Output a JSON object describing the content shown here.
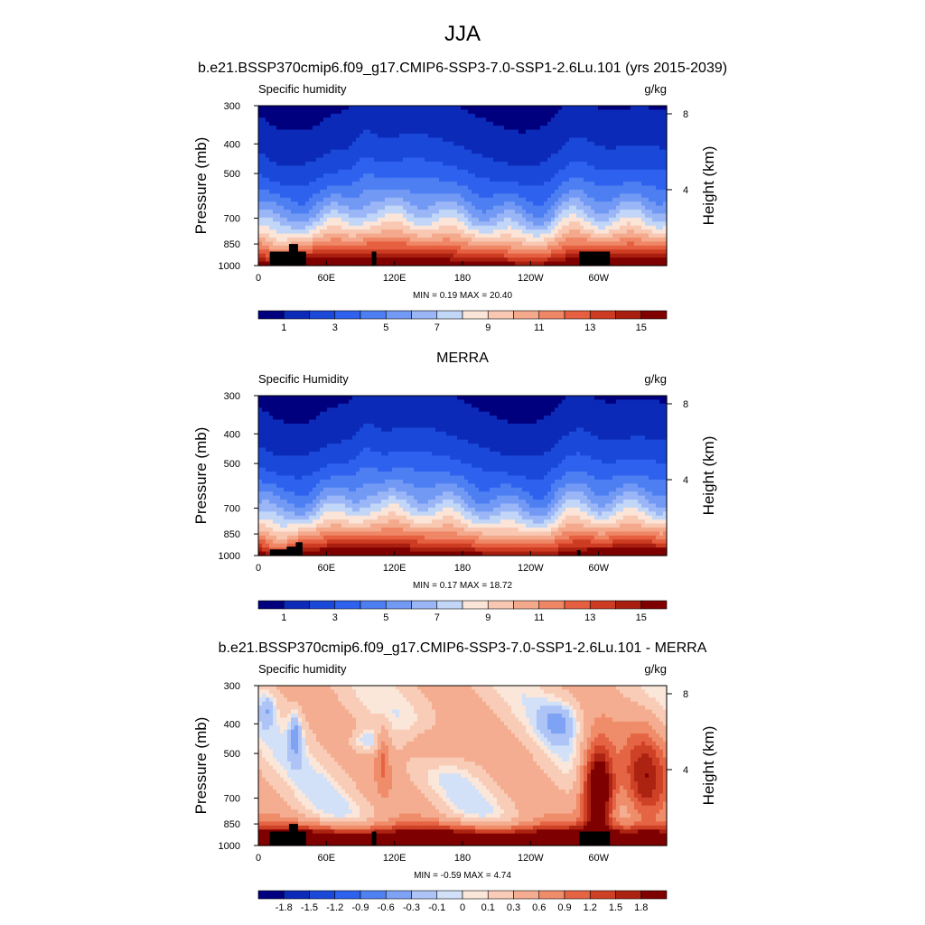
{
  "figure": {
    "title": "JJA"
  },
  "palettes": {
    "absolute": [
      "#00007f",
      "#0c2ab8",
      "#1a48d8",
      "#2e62ee",
      "#4d7ff2",
      "#7299f4",
      "#9ab6f6",
      "#c2d6f8",
      "#fbe4d8",
      "#f8c8b2",
      "#f4a98c",
      "#ef8766",
      "#e55f40",
      "#cd3c22",
      "#a81f10",
      "#7f0000"
    ],
    "difference": [
      "#00007f",
      "#0c2ab8",
      "#1a48d8",
      "#2e62ee",
      "#5081f2",
      "#7ea2f4",
      "#aec4f6",
      "#d2e1f8",
      "#fbe6da",
      "#f8ccb6",
      "#f4ad90",
      "#ef8c6a",
      "#e56444",
      "#cf4126",
      "#ad2312",
      "#7f0000"
    ],
    "terrain": "#000000"
  },
  "chart_data": [
    {
      "type": "heatmap",
      "title": "b.e21.BSSP370cmip6.f09_g17.CMIP6-SSP3-7.0-SSP1-2.6Lu.101 (yrs 2015-2039)",
      "left_label": "Specific humidity",
      "units": "g/kg",
      "ylabel": "Pressure (mb)",
      "ylabel_right": "Height (km)",
      "xticks": [
        "0",
        "60E",
        "120E",
        "180",
        "120W",
        "60W"
      ],
      "yticks": [
        "300",
        "400",
        "500",
        "700",
        "850",
        "1000"
      ],
      "yticks_right": [
        "8",
        "4"
      ],
      "minmax": "MIN =  0.19  MAX =  20.40",
      "min": 0.19,
      "max": 20.4,
      "colorbar": {
        "labels": [
          "1",
          "3",
          "5",
          "7",
          "9",
          "11",
          "13",
          "15"
        ],
        "levels": [
          1,
          2,
          3,
          4,
          5,
          6,
          7,
          8,
          9,
          10,
          11,
          12,
          13,
          14,
          15
        ]
      }
    },
    {
      "type": "heatmap",
      "title": "MERRA",
      "left_label": "Specific Humidity",
      "units": "g/kg",
      "ylabel": "Pressure (mb)",
      "ylabel_right": "Height (km)",
      "xticks": [
        "0",
        "60E",
        "120E",
        "180",
        "120W",
        "60W"
      ],
      "yticks": [
        "300",
        "400",
        "500",
        "700",
        "850",
        "1000"
      ],
      "yticks_right": [
        "8",
        "4"
      ],
      "minmax": "MIN =  0.17  MAX =  18.72",
      "min": 0.17,
      "max": 18.72,
      "colorbar": {
        "labels": [
          "1",
          "3",
          "5",
          "7",
          "9",
          "11",
          "13",
          "15"
        ],
        "levels": [
          1,
          2,
          3,
          4,
          5,
          6,
          7,
          8,
          9,
          10,
          11,
          12,
          13,
          14,
          15
        ]
      }
    },
    {
      "type": "heatmap",
      "title": "b.e21.BSSP370cmip6.f09_g17.CMIP6-SSP3-7.0-SSP1-2.6Lu.101 - MERRA",
      "left_label": "Specific humidity",
      "units": "g/kg",
      "ylabel": "Pressure (mb)",
      "ylabel_right": "Height (km)",
      "xticks": [
        "0",
        "60E",
        "120E",
        "180",
        "120W",
        "60W"
      ],
      "yticks": [
        "300",
        "400",
        "500",
        "700",
        "850",
        "1000"
      ],
      "yticks_right": [
        "8",
        "4"
      ],
      "minmax": "MIN = -0.59  MAX =  4.74",
      "min": -0.59,
      "max": 4.74,
      "colorbar": {
        "labels": [
          "-1.8",
          "-1.5",
          "-1.2",
          "-0.9",
          "-0.6",
          "-0.3",
          "-0.1",
          "0",
          "0.1",
          "0.3",
          "0.6",
          "0.9",
          "1.2",
          "1.5",
          "1.8"
        ],
        "levels": [
          -1.8,
          -1.5,
          -1.2,
          -0.9,
          -0.6,
          -0.3,
          -0.1,
          0,
          0.1,
          0.3,
          0.6,
          0.9,
          1.2,
          1.5,
          1.8
        ]
      }
    }
  ]
}
